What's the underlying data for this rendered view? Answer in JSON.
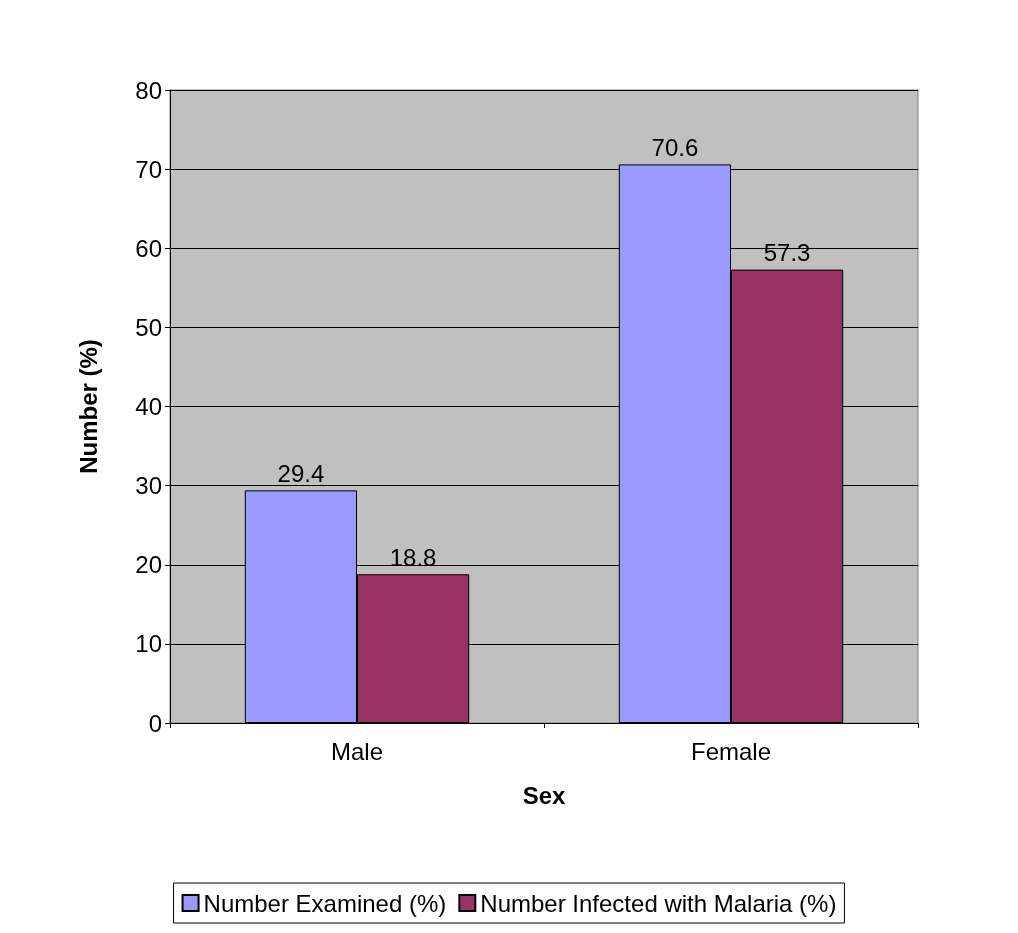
{
  "chart_data": {
    "type": "bar",
    "xlabel": "Sex",
    "ylabel": "Number (%)",
    "categories": [
      "Male",
      "Female"
    ],
    "series": [
      {
        "name": "Number Examined (%)",
        "color": "#9999ff",
        "values": [
          29.4,
          70.6
        ]
      },
      {
        "name": "Number Infected with Malaria (%)",
        "color": "#993366",
        "values": [
          18.8,
          57.3
        ]
      }
    ],
    "ylim": [
      0,
      80
    ],
    "yticks": [
      0,
      10,
      20,
      30,
      40,
      50,
      60,
      70,
      80
    ],
    "grid": "y",
    "legend": "bottom",
    "data_labels": true
  }
}
